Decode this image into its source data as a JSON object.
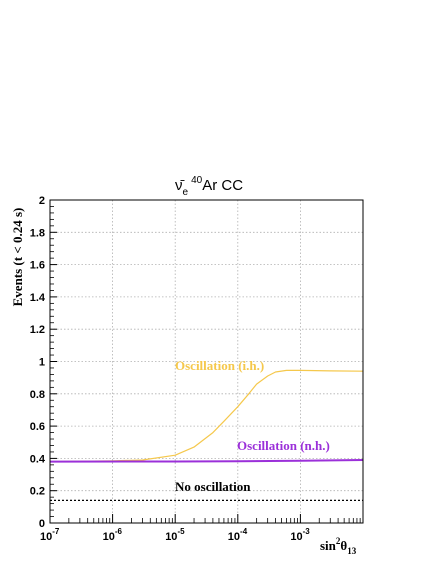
{
  "chart_data": {
    "type": "line",
    "title_nu": "ν̄",
    "title_nu_sub": "e",
    "title_ar_sup": "40",
    "title_rest": "Ar CC",
    "ylabel": "Events (t < 0.24 s)",
    "xlabel_base": "sin",
    "xlabel_sup": "2",
    "xlabel_theta": "θ",
    "xlabel_sub": "13",
    "x_scale": "log",
    "xlim": [
      1e-07,
      0.01
    ],
    "ylim": [
      0,
      2
    ],
    "grid": true,
    "x_ticks": [
      {
        "base": "10",
        "exp": "-7",
        "value": 1e-07
      },
      {
        "base": "10",
        "exp": "-6",
        "value": 1e-06
      },
      {
        "base": "10",
        "exp": "-5",
        "value": 1e-05
      },
      {
        "base": "10",
        "exp": "-4",
        "value": 0.0001
      },
      {
        "base": "10",
        "exp": "-3",
        "value": 0.001
      }
    ],
    "y_ticks": [
      "0",
      "0.2",
      "0.4",
      "0.6",
      "0.8",
      "1",
      "1.2",
      "1.4",
      "1.6",
      "1.8",
      "2"
    ],
    "series": [
      {
        "name": "Oscillation (i.h.)",
        "color": "#f5c84c",
        "style": "solid",
        "x": [
          1e-07,
          1e-06,
          3e-06,
          1e-05,
          2e-05,
          4e-05,
          6e-05,
          0.0001,
          0.00015,
          0.0002,
          0.0003,
          0.0004,
          0.0006,
          0.001,
          0.003,
          0.01
        ],
        "y": [
          0.38,
          0.385,
          0.39,
          0.42,
          0.47,
          0.56,
          0.63,
          0.72,
          0.8,
          0.86,
          0.91,
          0.935,
          0.945,
          0.945,
          0.942,
          0.94
        ]
      },
      {
        "name": "Oscillation (n.h.)",
        "color": "#9b30d9",
        "style": "solid",
        "x": [
          1e-07,
          1e-05,
          0.0001,
          0.001,
          0.01
        ],
        "y": [
          0.38,
          0.381,
          0.382,
          0.385,
          0.39
        ]
      },
      {
        "name": "No oscillation",
        "color": "#000000",
        "style": "dotted",
        "x": [
          1e-07,
          0.01
        ],
        "y": [
          0.14,
          0.14
        ]
      }
    ]
  }
}
